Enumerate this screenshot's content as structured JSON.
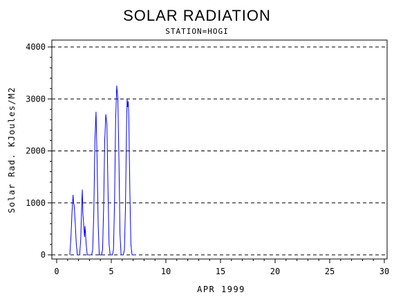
{
  "chart_data": {
    "type": "line",
    "title": "SOLAR RADIATION",
    "subtitle": "STATION=HOGI",
    "xlabel": "APR 1999",
    "ylabel": "Solar Rad. KJoules/M2",
    "xlim": [
      0,
      30
    ],
    "ylim": [
      0,
      4000
    ],
    "x_ticks": [
      "0",
      "5",
      "10",
      "15",
      "20",
      "25",
      "30"
    ],
    "y_ticks": [
      "0",
      "1000",
      "2000",
      "3000",
      "4000"
    ],
    "grid": "horizontal dashed",
    "line_color": "#0000ff",
    "series": [
      {
        "x": [
          1.2,
          1.3,
          1.4,
          1.5,
          1.55,
          1.6,
          1.7,
          1.8,
          1.9,
          2.0,
          2.1,
          2.2,
          2.3,
          2.35,
          2.4,
          2.5,
          2.55,
          2.6,
          2.7,
          2.8,
          2.9,
          3.0,
          3.1,
          3.2,
          3.3,
          3.4,
          3.5,
          3.6,
          3.7,
          3.8,
          3.9,
          4.0,
          4.1,
          4.2,
          4.3,
          4.4,
          4.5,
          4.6,
          4.7,
          4.8,
          4.9,
          5.0,
          5.1,
          5.2,
          5.3,
          5.4,
          5.5,
          5.6,
          5.7,
          5.8,
          5.9,
          6.0,
          6.1,
          6.2,
          6.3,
          6.4,
          6.45,
          6.5,
          6.55,
          6.6,
          6.7,
          6.8,
          6.9,
          7.0,
          7.2
        ],
        "y": [
          0,
          300,
          800,
          1150,
          1000,
          950,
          600,
          200,
          0,
          0,
          0,
          300,
          1000,
          1250,
          800,
          500,
          350,
          550,
          200,
          0,
          0,
          0,
          0,
          0,
          100,
          800,
          2200,
          2750,
          1800,
          600,
          0,
          0,
          0,
          100,
          900,
          2200,
          2700,
          2500,
          1200,
          200,
          0,
          0,
          0,
          100,
          1000,
          2600,
          3250,
          3000,
          1800,
          400,
          0,
          0,
          0,
          100,
          900,
          2500,
          3000,
          2850,
          2950,
          2700,
          1200,
          200,
          0,
          0,
          0
        ]
      }
    ]
  }
}
